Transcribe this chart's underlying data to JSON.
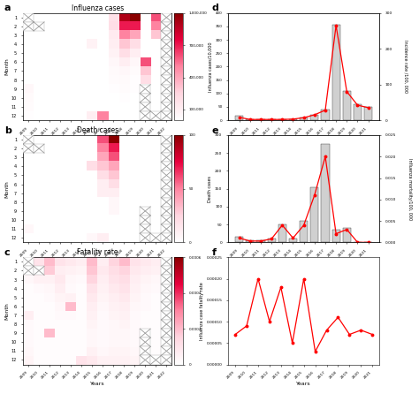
{
  "years_heatmap": [
    "2009",
    "2010",
    "2011",
    "2012",
    "2013",
    "2014",
    "2015",
    "2016",
    "2017",
    "2018",
    "2019",
    "2020",
    "2021",
    "2022"
  ],
  "years_bar": [
    "2009",
    "2010",
    "2011",
    "2012",
    "2013",
    "2014",
    "2015",
    "2016",
    "2017",
    "2018",
    "2019",
    "2020",
    "2021"
  ],
  "months": [
    1,
    2,
    3,
    4,
    5,
    6,
    7,
    8,
    9,
    10,
    11,
    12
  ],
  "influenza_cases": [
    [
      900000,
      0,
      0,
      0,
      0,
      0,
      0,
      0,
      180000,
      900000,
      1000000,
      0,
      600000,
      0
    ],
    [
      700000,
      0,
      0,
      0,
      0,
      0,
      0,
      0,
      200000,
      700000,
      700000,
      0,
      500000,
      0
    ],
    [
      0,
      0,
      0,
      0,
      0,
      0,
      0,
      0,
      120000,
      500000,
      400000,
      0,
      300000,
      0
    ],
    [
      0,
      0,
      0,
      0,
      0,
      0,
      80000,
      0,
      100000,
      300000,
      200000,
      0,
      0,
      0
    ],
    [
      0,
      0,
      0,
      0,
      0,
      0,
      0,
      0,
      80000,
      200000,
      100000,
      0,
      0,
      0
    ],
    [
      0,
      0,
      0,
      0,
      0,
      0,
      0,
      0,
      50000,
      100000,
      50000,
      600000,
      0,
      0
    ],
    [
      0,
      0,
      0,
      0,
      0,
      0,
      0,
      0,
      30000,
      50000,
      20000,
      300000,
      0,
      0
    ],
    [
      0,
      0,
      0,
      0,
      0,
      0,
      0,
      0,
      20000,
      30000,
      10000,
      200000,
      0,
      0
    ],
    [
      50000,
      0,
      0,
      0,
      0,
      0,
      0,
      0,
      10000,
      20000,
      10000,
      0,
      0,
      0
    ],
    [
      30000,
      0,
      0,
      0,
      0,
      0,
      0,
      0,
      0,
      10000,
      0,
      0,
      0,
      0
    ],
    [
      20000,
      0,
      0,
      0,
      0,
      0,
      0,
      0,
      0,
      0,
      0,
      0,
      0,
      0
    ],
    [
      10000,
      0,
      0,
      0,
      0,
      0,
      100000,
      500000,
      0,
      0,
      0,
      0,
      0,
      0
    ]
  ],
  "death_cases": [
    [
      10,
      0,
      0,
      0,
      0,
      0,
      0,
      60,
      100,
      0,
      0,
      0,
      0,
      0
    ],
    [
      5,
      0,
      0,
      0,
      0,
      0,
      0,
      50,
      70,
      0,
      0,
      0,
      0,
      0
    ],
    [
      0,
      0,
      0,
      0,
      0,
      0,
      0,
      40,
      60,
      0,
      0,
      0,
      0,
      0
    ],
    [
      0,
      0,
      0,
      0,
      0,
      0,
      20,
      30,
      40,
      0,
      0,
      0,
      0,
      0
    ],
    [
      0,
      0,
      0,
      0,
      0,
      0,
      0,
      20,
      30,
      0,
      0,
      0,
      0,
      0
    ],
    [
      0,
      0,
      0,
      0,
      0,
      0,
      0,
      10,
      20,
      0,
      0,
      0,
      0,
      0
    ],
    [
      0,
      0,
      0,
      0,
      0,
      0,
      0,
      10,
      10,
      0,
      0,
      0,
      0,
      0
    ],
    [
      0,
      0,
      0,
      0,
      0,
      0,
      0,
      0,
      5,
      0,
      0,
      0,
      0,
      0
    ],
    [
      0,
      0,
      0,
      0,
      0,
      0,
      0,
      0,
      5,
      0,
      0,
      0,
      0,
      0
    ],
    [
      0,
      0,
      0,
      0,
      0,
      0,
      0,
      0,
      0,
      0,
      0,
      0,
      0,
      0
    ],
    [
      5,
      0,
      0,
      0,
      0,
      0,
      0,
      0,
      0,
      0,
      0,
      0,
      0,
      0
    ],
    [
      0,
      0,
      0,
      0,
      0,
      0,
      5,
      10,
      0,
      0,
      0,
      0,
      0,
      0
    ]
  ],
  "fatality_rate": [
    [
      5e-05,
      0.0001,
      0.0002,
      0.0001,
      8e-05,
      6e-05,
      0.0002,
      6e-05,
      0.00015,
      0.0002,
      0.0001,
      8e-05,
      6e-05,
      4e-05
    ],
    [
      8e-05,
      9e-05,
      0.00017,
      6e-05,
      5e-05,
      4e-05,
      0.00018,
      8e-05,
      0.00012,
      0.00015,
      8e-05,
      6e-05,
      5e-05,
      3e-05
    ],
    [
      3e-05,
      5e-05,
      5e-05,
      8e-05,
      3e-05,
      2e-05,
      0.00015,
      6e-05,
      0.0001,
      0.00012,
      6e-05,
      4e-05,
      3e-05,
      2e-05
    ],
    [
      1e-05,
      2e-05,
      3e-05,
      6e-05,
      2e-05,
      1e-05,
      0.0001,
      5e-05,
      8e-05,
      0.0001,
      5e-05,
      3e-05,
      2e-05,
      1e-05
    ],
    [
      1e-05,
      1e-05,
      2e-05,
      4e-05,
      5e-05,
      1e-05,
      8e-05,
      4e-05,
      6e-05,
      8e-05,
      4e-05,
      2e-05,
      1e-05,
      1e-05
    ],
    [
      1e-05,
      1e-05,
      1e-05,
      3e-05,
      0.0002,
      1e-05,
      6e-05,
      3e-05,
      5e-05,
      6e-05,
      3e-05,
      2e-05,
      1e-05,
      1e-05
    ],
    [
      6e-05,
      1e-05,
      1e-05,
      2e-05,
      2e-05,
      1e-05,
      5e-05,
      2e-05,
      4e-05,
      5e-05,
      2e-05,
      1e-05,
      1e-05,
      1e-05
    ],
    [
      2e-05,
      1e-05,
      1e-05,
      1e-05,
      1e-05,
      1e-05,
      4e-05,
      2e-05,
      3e-05,
      4e-05,
      2e-05,
      1e-05,
      1e-05,
      1e-05
    ],
    [
      2e-05,
      1e-05,
      0.0002,
      1e-05,
      1e-05,
      1e-05,
      3e-05,
      2e-05,
      3e-05,
      3e-05,
      2e-05,
      1e-05,
      1e-05,
      1e-05
    ],
    [
      2e-05,
      1e-05,
      1e-05,
      1e-05,
      1e-05,
      1e-05,
      3e-05,
      2e-05,
      3e-05,
      3e-05,
      2e-05,
      1e-05,
      1e-05,
      1e-05
    ],
    [
      3e-05,
      1e-05,
      1e-05,
      1e-05,
      1e-05,
      1e-05,
      5e-05,
      3e-05,
      4e-05,
      4e-05,
      3e-05,
      2e-05,
      1e-05,
      1e-05
    ],
    [
      4e-05,
      1e-05,
      1e-05,
      1e-05,
      1e-05,
      0.0001,
      8e-05,
      5e-05,
      5e-05,
      5e-05,
      4e-05,
      3e-05,
      2e-05,
      2e-05
    ]
  ],
  "influenza_na_mask": [
    [
      1,
      0,
      0,
      0,
      0,
      0,
      0,
      0,
      0,
      0,
      0,
      0,
      0,
      1
    ],
    [
      1,
      1,
      0,
      0,
      0,
      0,
      0,
      0,
      0,
      0,
      0,
      0,
      0,
      1
    ],
    [
      0,
      0,
      0,
      0,
      0,
      0,
      0,
      0,
      0,
      0,
      0,
      0,
      0,
      1
    ],
    [
      0,
      0,
      0,
      0,
      0,
      0,
      0,
      0,
      0,
      0,
      0,
      0,
      0,
      1
    ],
    [
      0,
      0,
      0,
      0,
      0,
      0,
      0,
      0,
      0,
      0,
      0,
      0,
      0,
      1
    ],
    [
      0,
      0,
      0,
      0,
      0,
      0,
      0,
      0,
      0,
      0,
      0,
      0,
      0,
      1
    ],
    [
      0,
      0,
      0,
      0,
      0,
      0,
      0,
      0,
      0,
      0,
      0,
      0,
      0,
      1
    ],
    [
      0,
      0,
      0,
      0,
      0,
      0,
      0,
      0,
      0,
      0,
      0,
      0,
      0,
      1
    ],
    [
      0,
      0,
      0,
      0,
      0,
      0,
      0,
      0,
      0,
      0,
      0,
      1,
      0,
      1
    ],
    [
      0,
      0,
      0,
      0,
      0,
      0,
      0,
      0,
      0,
      0,
      0,
      1,
      0,
      1
    ],
    [
      0,
      0,
      0,
      0,
      0,
      0,
      0,
      0,
      0,
      0,
      0,
      1,
      0,
      1
    ],
    [
      0,
      0,
      0,
      0,
      0,
      0,
      0,
      0,
      0,
      0,
      0,
      1,
      1,
      1
    ]
  ],
  "d_bar": [
    15,
    4,
    3,
    3,
    4,
    5,
    10,
    20,
    40,
    355,
    110,
    60,
    50
  ],
  "d_line": [
    8,
    2,
    2,
    2,
    2,
    3,
    7,
    15,
    28,
    265,
    80,
    42,
    35
  ],
  "e_bar": [
    15,
    5,
    5,
    10,
    50,
    10,
    60,
    155,
    275,
    35,
    40,
    0,
    0
  ],
  "e_line": [
    0.001,
    0.0003,
    0.0003,
    0.0008,
    0.004,
    0.001,
    0.004,
    0.011,
    0.02,
    0.002,
    0.003,
    0.0,
    0.0
  ],
  "f_values": [
    7e-05,
    9e-05,
    0.0002,
    0.0001,
    0.00018,
    5e-05,
    0.0002,
    3e-05,
    8e-05,
    0.00011,
    7e-05,
    8e-05,
    7e-05
  ],
  "cmap_colors": [
    "#ffffff",
    "#ffd6e0",
    "#ff85a1",
    "#e8003d",
    "#8b0000"
  ],
  "cbar_a_ticks": [
    100000,
    400000,
    700000,
    1000000
  ],
  "cbar_a_labels": [
    "100,000",
    "400,000",
    "700,000",
    "1,000,000"
  ],
  "cbar_b_ticks": [
    0,
    50,
    100
  ],
  "cbar_b_labels": [
    "0",
    "50",
    "100"
  ],
  "cbar_c_ticks": [
    0,
    0.0002,
    0.0004,
    0.0006
  ],
  "cbar_c_labels": [
    "0",
    "0.0002",
    "0.0004",
    "0.0006"
  ]
}
